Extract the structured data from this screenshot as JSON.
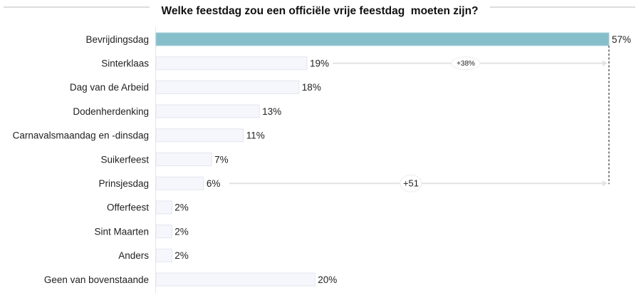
{
  "chart_data": {
    "type": "bar",
    "orientation": "horizontal",
    "title": "Welke feestdag zou een officiële vrije feestdag  moeten zijn?",
    "xlabel": "",
    "ylabel": "",
    "xlim": [
      0,
      57
    ],
    "grid": false,
    "legend": "none",
    "categories": [
      "Bevrijdingsdag",
      "Sinterklaas",
      "Dag van de Arbeid",
      "Dodenherdenking",
      "Carnavalsmaandag en -dinsdag",
      "Suikerfeest",
      "Prinsjesdag",
      "Offerfeest",
      "Sint Maarten",
      "Anders",
      "Geen van bovenstaande"
    ],
    "values": [
      57,
      19,
      18,
      13,
      11,
      7,
      6,
      2,
      2,
      2,
      20
    ],
    "value_labels": [
      "57%",
      "19%",
      "18%",
      "13%",
      "11%",
      "7%",
      "6%",
      "2%",
      "2%",
      "2%",
      "20%"
    ],
    "highlight_index": 0,
    "colors": {
      "highlight": "#86bfca",
      "highlight_border": "#a9d2da",
      "bar": "#f6f7fc",
      "bar_border": "#e4e6ef",
      "axis": "#e6e6e6",
      "arrow": "#e3e3e3",
      "title_rule": "#dcdcdc",
      "dashed": "#333333"
    },
    "annotations": [
      {
        "from_index": 1,
        "to_index": 0,
        "label": "+38%"
      },
      {
        "from_index": 6,
        "to_index": 0,
        "label": "+51"
      }
    ]
  }
}
